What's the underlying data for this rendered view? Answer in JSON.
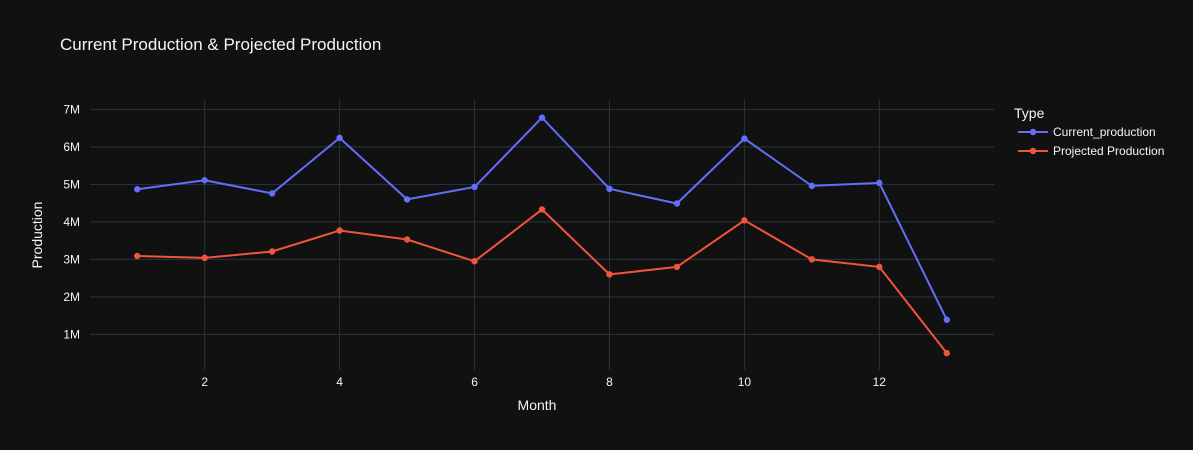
{
  "chart_data": {
    "type": "line",
    "title": "Current Production & Projected Production",
    "xlabel": "Month",
    "ylabel": "Production",
    "xlim": [
      0.3,
      13.7
    ],
    "ylim": [
      50000,
      7250000
    ],
    "x_ticks": [
      2,
      4,
      6,
      8,
      10,
      12
    ],
    "x_tick_labels": [
      "2",
      "4",
      "6",
      "8",
      "10",
      "12"
    ],
    "y_ticks": [
      1000000,
      2000000,
      3000000,
      4000000,
      5000000,
      6000000,
      7000000
    ],
    "y_tick_labels": [
      "1M",
      "2M",
      "3M",
      "4M",
      "5M",
      "6M",
      "7M"
    ],
    "grid": true,
    "legend": {
      "title": "Type",
      "placement": "top-right"
    },
    "x": [
      1,
      2,
      3,
      4,
      5,
      6,
      7,
      8,
      9,
      10,
      11,
      12,
      13
    ],
    "series": [
      {
        "name": "Current_production",
        "color": "#636efa",
        "values": [
          4870000,
          5110000,
          4760000,
          6240000,
          4600000,
          4930000,
          6780000,
          4880000,
          4490000,
          6220000,
          4960000,
          5040000,
          1390000
        ]
      },
      {
        "name": "Projected Production",
        "color": "#ef553b",
        "values": [
          3090000,
          3040000,
          3210000,
          3770000,
          3530000,
          2950000,
          4330000,
          2600000,
          2800000,
          4040000,
          3000000,
          2800000,
          500000
        ]
      }
    ]
  }
}
